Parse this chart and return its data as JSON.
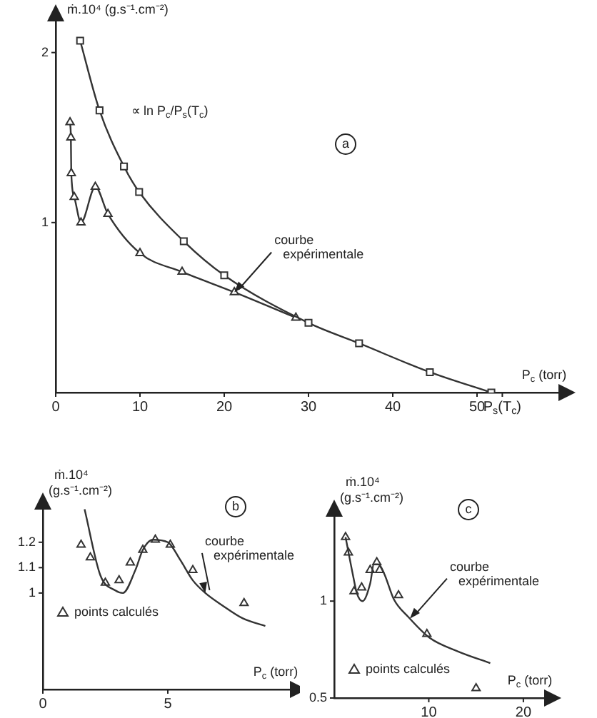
{
  "chart_data": [
    {
      "type": "line",
      "title": "a",
      "ylabel": "ṁ.10⁴ (g.s⁻¹.cm⁻²)",
      "xlabel": "P$_{c}$ (torr)",
      "xlim": [
        0,
        60
      ],
      "ylim": [
        0,
        2.2
      ],
      "xticks": [
        0,
        10,
        20,
        30,
        40,
        50,
        {
          "value": 53,
          "label": "P$_{s}$(T$_{c}$)"
        }
      ],
      "yticks": [
        1,
        2
      ],
      "grid": false,
      "legend": false,
      "series": [
        {
          "color": "#333333",
          "marker": "square",
          "x": [
            2.9,
            5.2,
            8.1,
            9.9,
            15.2,
            20,
            30,
            36,
            44.4,
            51.7
          ],
          "values": [
            2.07,
            1.66,
            1.33,
            1.18,
            0.89,
            0.69,
            0.41,
            0.29,
            0.12,
            0
          ]
        },
        {
          "color": "#333333",
          "marker": "triangle",
          "x": [
            1.7,
            1.8,
            1.85,
            2.2,
            3,
            4.7,
            6.2,
            10,
            15,
            21.2,
            28.5
          ],
          "values": [
            1.59,
            1.5,
            1.29,
            1.15,
            1.0,
            1.21,
            1.05,
            0.82,
            0.71,
            0.59,
            0.44
          ]
        }
      ],
      "annotations": [
        "∝ ln P$_{c}$/P$_{s}$(T$_{c}$)",
        {
          "text": "courbe expérimentale",
          "x": 21.2,
          "y": 0.59
        }
      ]
    },
    {
      "type": "line",
      "title": "b",
      "ylabel": "ṁ.10⁴ (g.s⁻¹.cm⁻²)",
      "xlabel": "P$_{c}$ (torr)",
      "xlim": [
        0,
        10
      ],
      "ylim": [
        0.62,
        1.34
      ],
      "xticks": [
        0,
        5
      ],
      "yticks": [
        1,
        1.1,
        1.2
      ],
      "grid": false,
      "legend": "center left",
      "series": [
        {
          "color": "#333333",
          "marker": "none",
          "x": [
            1.67,
            2.3,
            2.9,
            3.2,
            3.7,
            4.0,
            4.4,
            5.0,
            5.5,
            6.0,
            6.5,
            7.2,
            8.0,
            8.9
          ],
          "values": [
            1.33,
            1.07,
            1.01,
            1.0,
            1.09,
            1.17,
            1.21,
            1.2,
            1.13,
            1.05,
            1.0,
            0.95,
            0.9,
            0.87
          ]
        },
        {
          "type": "scatter",
          "name": "points calculés",
          "color": "#333333",
          "marker": "triangle",
          "x": [
            1.53,
            1.9,
            2.5,
            3.05,
            3.5,
            4.0,
            4.5,
            5.1,
            6.0,
            8.05
          ],
          "values": [
            1.19,
            1.14,
            1.04,
            1.05,
            1.12,
            1.17,
            1.21,
            1.19,
            1.09,
            0.96
          ]
        }
      ],
      "annotations": [
        {
          "text": "courbe expérimentale",
          "x": 6.5,
          "y": 1.0
        }
      ]
    },
    {
      "type": "line",
      "title": "c",
      "ylabel": "ṁ.10⁴ (g.s⁻¹.cm⁻²)",
      "xlabel": "P$_{c}$ (torr)",
      "xlim": [
        0,
        22.5
      ],
      "ylim": [
        0.5,
        1.45
      ],
      "xticks": [
        10,
        20
      ],
      "yticks": [
        0.5,
        1
      ],
      "grid": false,
      "legend": "bottom left",
      "series": [
        {
          "color": "#333333",
          "marker": "none",
          "x": [
            1.2,
            2.0,
            2.4,
            3.0,
            3.8,
            4.2,
            4.7,
            5.3,
            6.3,
            7.8,
            10.1,
            13.1,
            16.5
          ],
          "values": [
            1.33,
            1.13,
            1.04,
            1.0,
            1.09,
            1.19,
            1.19,
            1.14,
            1.01,
            0.92,
            0.81,
            0.74,
            0.68
          ]
        },
        {
          "type": "scatter",
          "name": "points calculés",
          "color": "#333333",
          "marker": "triangle",
          "x": [
            1.2,
            1.5,
            2.1,
            2.9,
            3.8,
            4.5,
            4.8,
            6.8,
            9.8,
            15
          ],
          "values": [
            1.33,
            1.25,
            1.05,
            1.07,
            1.16,
            1.2,
            1.16,
            1.03,
            0.83,
            0.55
          ]
        }
      ],
      "annotations": [
        {
          "text": "courbe expérimentale",
          "x": 8,
          "y": 0.91
        }
      ]
    }
  ]
}
